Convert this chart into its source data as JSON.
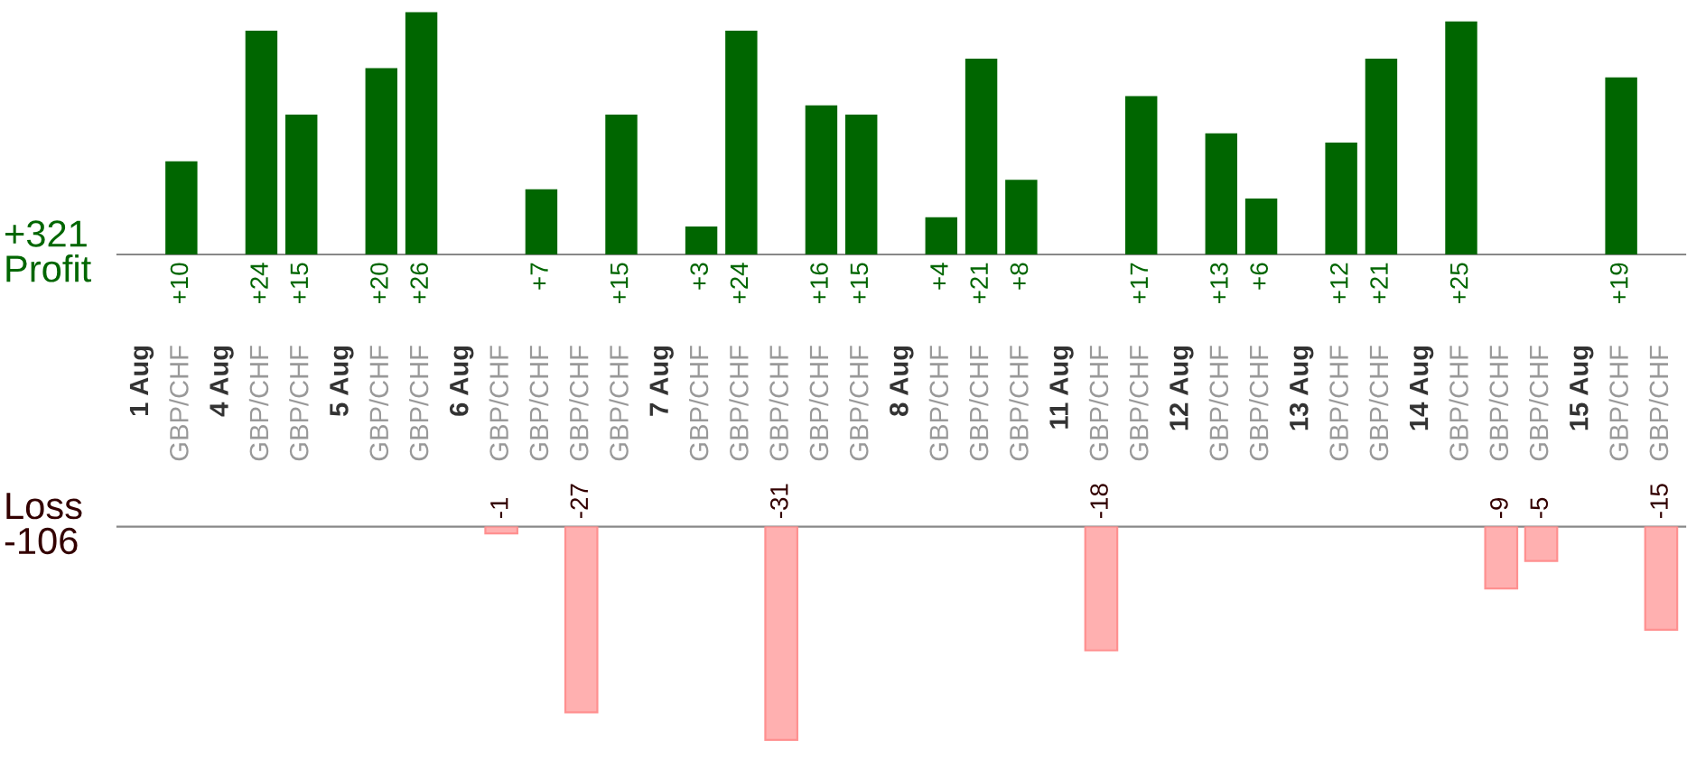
{
  "chart_data": [
    {
      "type": "bar",
      "ylabel": "Profit",
      "annotations": [
        "+321"
      ],
      "categories": [
        "1 Aug",
        "GBP/CHF",
        "4 Aug",
        "GBP/CHF",
        "GBP/CHF",
        "5 Aug",
        "GBP/CHF",
        "GBP/CHF",
        "6 Aug",
        "GBP/CHF",
        "GBP/CHF",
        "GBP/CHF",
        "GBP/CHF",
        "7 Aug",
        "GBP/CHF",
        "GBP/CHF",
        "GBP/CHF",
        "GBP/CHF",
        "GBP/CHF",
        "8 Aug",
        "GBP/CHF",
        "GBP/CHF",
        "GBP/CHF",
        "11 Aug",
        "GBP/CHF",
        "GBP/CHF",
        "12 Aug",
        "GBP/CHF",
        "GBP/CHF",
        "13 Aug",
        "GBP/CHF",
        "GBP/CHF",
        "14 Aug",
        "GBP/CHF",
        "GBP/CHF",
        "GBP/CHF",
        "15 Aug",
        "GBP/CHF",
        "GBP/CHF"
      ],
      "values": [
        null,
        10,
        null,
        24,
        15,
        null,
        20,
        26,
        null,
        null,
        7,
        null,
        15,
        null,
        3,
        24,
        null,
        16,
        15,
        null,
        4,
        21,
        8,
        null,
        null,
        17,
        null,
        13,
        6,
        null,
        12,
        21,
        null,
        25,
        null,
        null,
        null,
        19,
        null
      ],
      "value_labels": [
        null,
        "+10",
        null,
        "+24",
        "+15",
        null,
        "+20",
        "+26",
        null,
        null,
        "+7",
        null,
        "+15",
        null,
        "+3",
        "+24",
        null,
        "+16",
        "+15",
        null,
        "+4",
        "+21",
        "+8",
        null,
        null,
        "+17",
        null,
        "+13",
        "+6",
        null,
        "+12",
        "+21",
        null,
        "+25",
        null,
        null,
        null,
        "+19",
        null
      ],
      "color": "#006600",
      "tick_labels": "x"
    },
    {
      "type": "bar",
      "ylabel": "Loss",
      "annotations": [
        "-106"
      ],
      "values": [
        null,
        null,
        null,
        null,
        null,
        null,
        null,
        null,
        null,
        -1,
        null,
        -27,
        null,
        null,
        null,
        null,
        -31,
        null,
        null,
        null,
        null,
        null,
        null,
        null,
        -18,
        null,
        null,
        null,
        null,
        null,
        null,
        null,
        null,
        null,
        -9,
        -5,
        null,
        null,
        -15
      ],
      "value_labels": [
        null,
        null,
        null,
        null,
        null,
        null,
        null,
        null,
        null,
        "-1",
        null,
        "-27",
        null,
        null,
        null,
        null,
        "-31",
        null,
        null,
        null,
        null,
        null,
        null,
        null,
        "-18",
        null,
        null,
        null,
        null,
        null,
        null,
        null,
        null,
        null,
        "-9",
        "-5",
        null,
        null,
        "-15"
      ],
      "color": "#ffb0b0",
      "tick_labels": false
    }
  ]
}
